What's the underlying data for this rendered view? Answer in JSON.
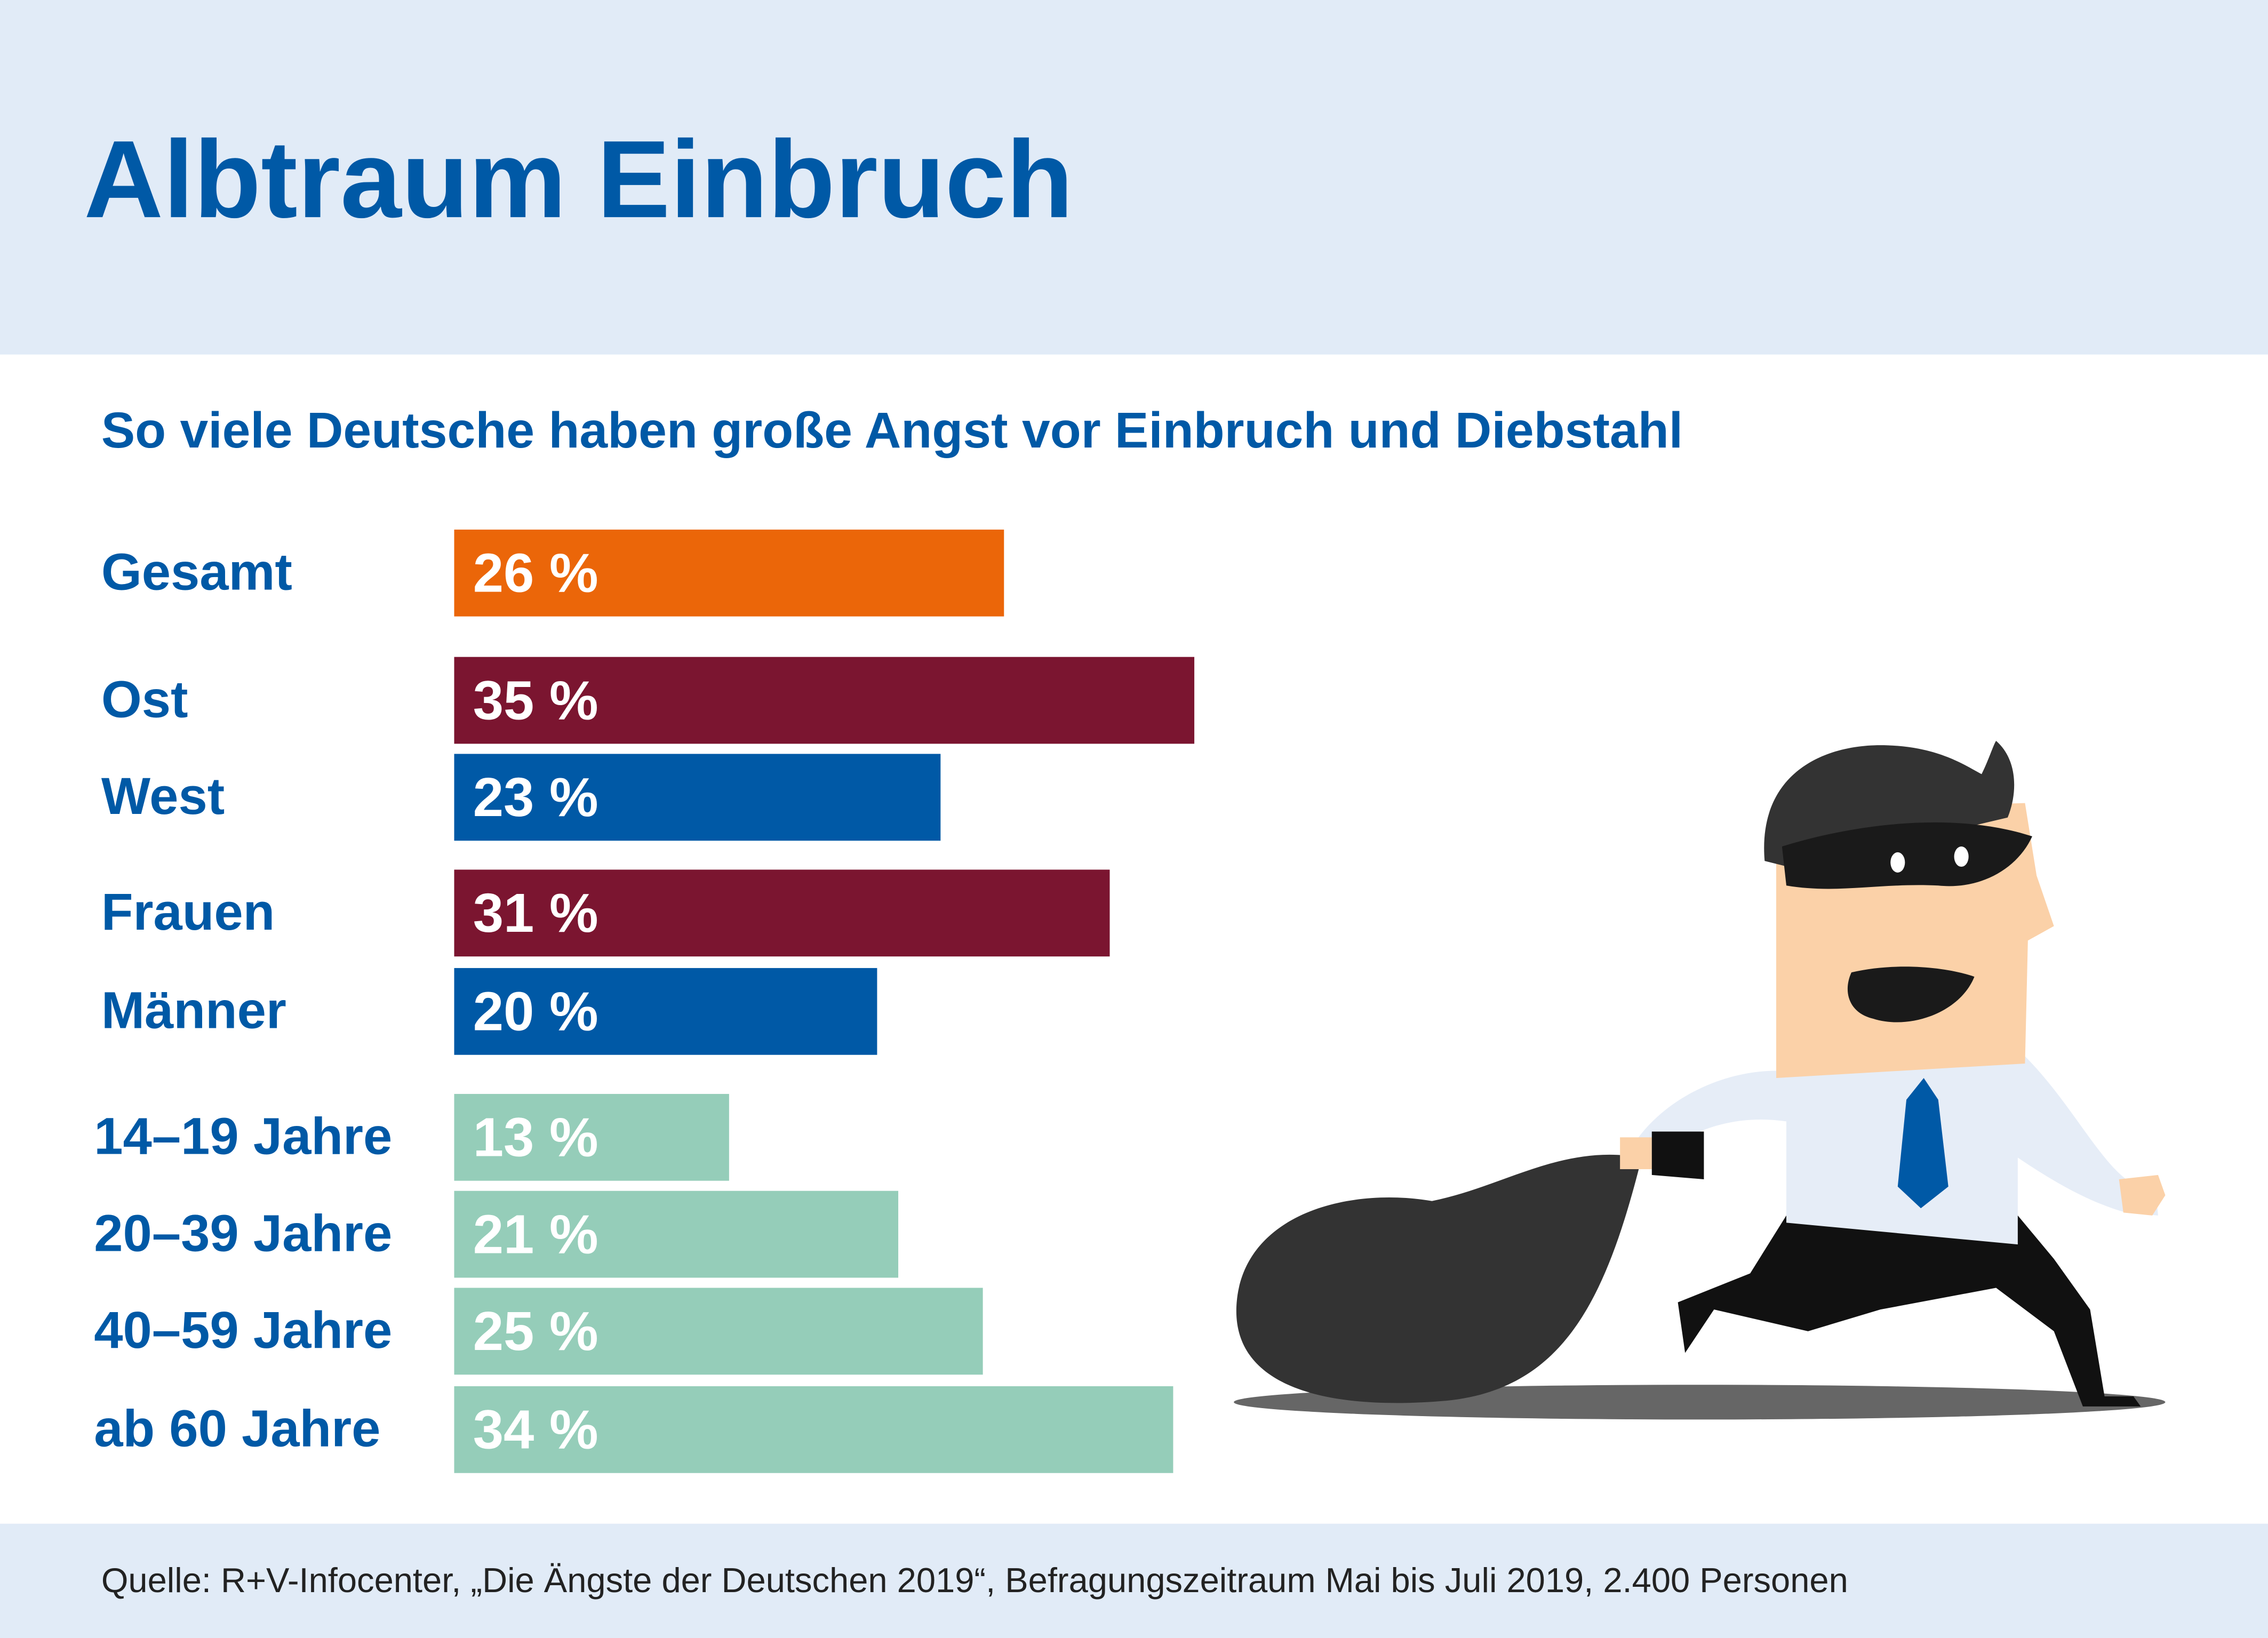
{
  "chart_data": {
    "type": "bar",
    "title": "Albtraum Einbruch",
    "subtitle": "So viele Deutsche haben große Angst vor Einbruch und Diebstahl",
    "source": "Quelle: R+V-Infocenter, „Die Ängste der Deutschen 2019“, Befragungszeitraum Mai bis Juli 2019, 2.400 Personen",
    "categories": [
      "Gesamt",
      "Ost",
      "West",
      "Frauen",
      "Männer",
      "14–19 Jahre",
      "20–39 Jahre",
      "40–59 Jahre",
      "ab 60 Jahre"
    ],
    "values": [
      26,
      35,
      23,
      31,
      20,
      13,
      21,
      25,
      34
    ],
    "value_labels": [
      "26 %",
      "35 %",
      "23 %",
      "31 %",
      "20 %",
      "13 %",
      "21 %",
      "25 %",
      "34 %"
    ],
    "colors": [
      "#eb6609",
      "#7b1530",
      "#0059a6",
      "#7b1530",
      "#0059a6",
      "#95cdb9",
      "#95cdb9",
      "#95cdb9",
      "#95cdb9"
    ]
  }
}
